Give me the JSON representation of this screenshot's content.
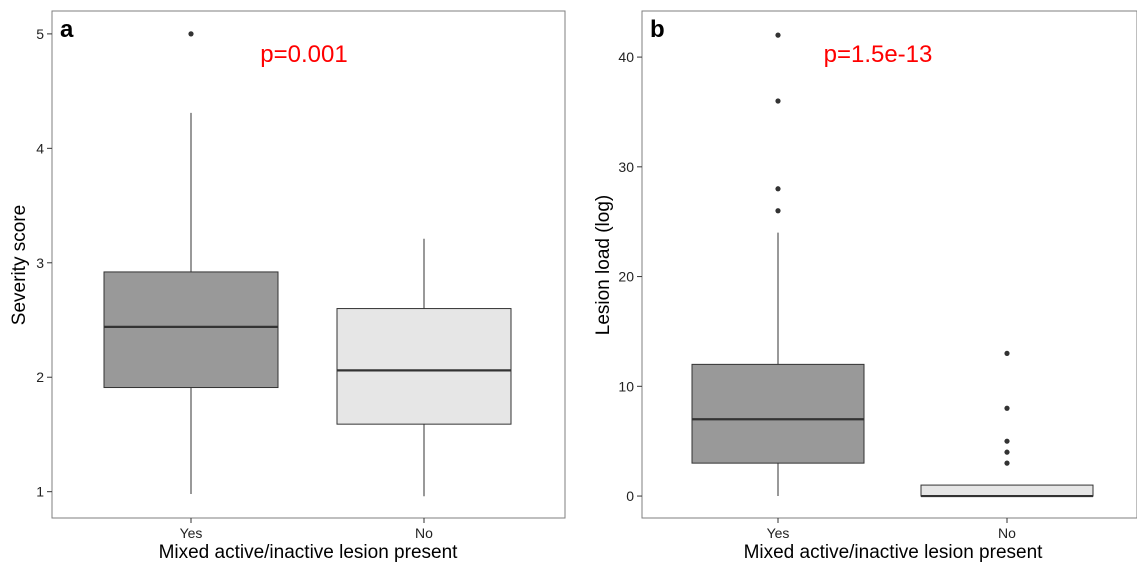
{
  "chart_data": [
    {
      "type": "boxplot",
      "panel": "a",
      "annotation": "p=0.001",
      "xlabel": "Mixed active/inactive lesion present",
      "ylabel": "Severity score",
      "ylim": [
        0.77,
        5.2
      ],
      "yticks": [
        1,
        2,
        3,
        4,
        5
      ],
      "grid": false,
      "categories": [
        "Yes",
        "No"
      ],
      "boxes": [
        {
          "category": "Yes",
          "whisker_low": 0.98,
          "q1": 1.91,
          "median": 2.44,
          "q3": 2.92,
          "whisker_high": 4.31,
          "outliers": [
            5.0
          ],
          "fill": "#999999"
        },
        {
          "category": "No",
          "whisker_low": 0.96,
          "q1": 1.59,
          "median": 2.06,
          "q3": 2.6,
          "whisker_high": 3.21,
          "outliers": [],
          "fill": "#e6e6e6"
        }
      ]
    },
    {
      "type": "boxplot",
      "panel": "b",
      "annotation": "p=1.5e-13",
      "xlabel": "Mixed active/inactive lesion present",
      "ylabel": "Lesion load (log)",
      "ylim": [
        -2.0,
        44.2
      ],
      "yticks": [
        0,
        10,
        20,
        30,
        40
      ],
      "grid": false,
      "categories": [
        "Yes",
        "No"
      ],
      "boxes": [
        {
          "category": "Yes",
          "whisker_low": 0,
          "q1": 3,
          "median": 7,
          "q3": 12,
          "whisker_high": 24,
          "outliers": [
            26,
            28,
            36,
            42
          ],
          "fill": "#999999"
        },
        {
          "category": "No",
          "whisker_low": 0,
          "q1": 0,
          "median": 0,
          "q3": 1,
          "whisker_high": 1,
          "outliers": [
            3,
            4,
            5,
            8,
            13
          ],
          "fill": "#e6e6e6"
        }
      ]
    }
  ],
  "colors": {
    "annotation": "#ff0000",
    "box_yes": "#999999",
    "box_no": "#e6e6e6",
    "frame": "#7f7f7f"
  }
}
